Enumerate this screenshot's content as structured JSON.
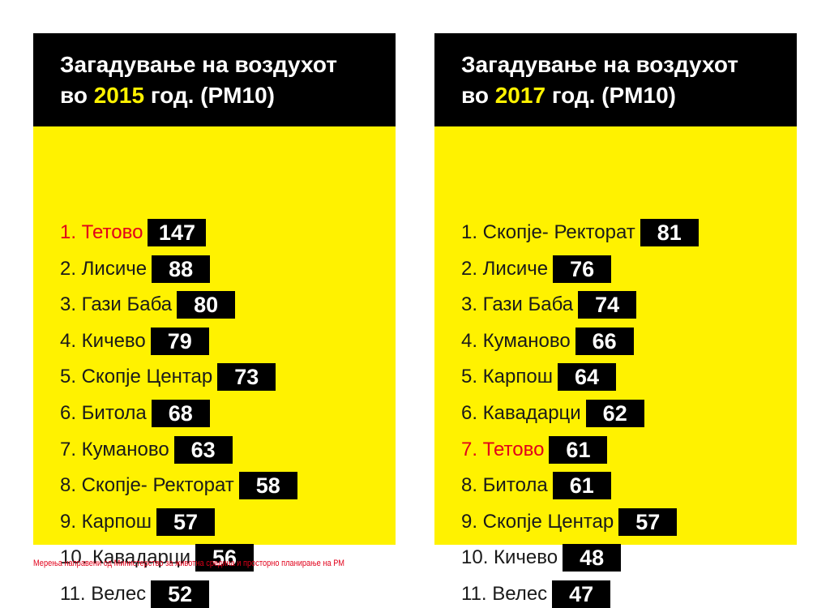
{
  "panels": [
    {
      "title_line1": "Загадување на воздухот",
      "title_prefix": "во",
      "year": "2015",
      "title_suffix": "год. (PM10)",
      "rows": [
        {
          "label": "1. Тетово",
          "value": "147",
          "highlight": true
        },
        {
          "label": "2. Лисиче",
          "value": "88"
        },
        {
          "label": "3. Гази Баба",
          "value": "80"
        },
        {
          "label": "4. Кичево",
          "value": "79"
        },
        {
          "label": "5. Скопје Центар",
          "value": "73"
        },
        {
          "label": "6. Битола",
          "value": "68"
        },
        {
          "label": "7. Куманово",
          "value": "63"
        },
        {
          "label": "8. Скопје- Ректорат",
          "value": "58"
        },
        {
          "label": "9. Карпош",
          "value": "57"
        },
        {
          "label": "10. Кавадарци",
          "value": "56"
        },
        {
          "label": "11. Велес",
          "value": "52"
        }
      ]
    },
    {
      "title_line1": "Загадување на воздухот",
      "title_prefix": "во",
      "year": "2017",
      "title_suffix": "год. (PM10)",
      "rows": [
        {
          "label": "1. Скопје- Ректорат",
          "value": "81"
        },
        {
          "label": "2. Лисиче",
          "value": "76"
        },
        {
          "label": "3. Гази Баба",
          "value": "74"
        },
        {
          "label": "4.  Куманово",
          "value": "66"
        },
        {
          "label": "5.  Карпош",
          "value": "64"
        },
        {
          "label": "6. Кавадарци ",
          "value": "62"
        },
        {
          "label": "7.  Тетово",
          "value": "61",
          "highlight": true
        },
        {
          "label": "8.  Битола",
          "value": "61"
        },
        {
          "label": "9. Скопје Центар",
          "value": "57"
        },
        {
          "label": "10. Кичево",
          "value": "48"
        },
        {
          "label": "11. Велес",
          "value": "47"
        }
      ]
    }
  ],
  "footnote": "Мерења направени од Министерство за животна средина и просторно планирање на РМ",
  "colors": {
    "accent_yellow": "#fff200",
    "highlight_red": "#e1001a",
    "header_black": "#000000"
  }
}
